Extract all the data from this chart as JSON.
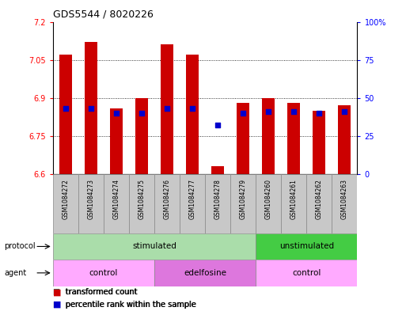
{
  "title": "GDS5544 / 8020226",
  "samples": [
    "GSM1084272",
    "GSM1084273",
    "GSM1084274",
    "GSM1084275",
    "GSM1084276",
    "GSM1084277",
    "GSM1084278",
    "GSM1084279",
    "GSM1084260",
    "GSM1084261",
    "GSM1084262",
    "GSM1084263"
  ],
  "red_values": [
    7.07,
    7.12,
    6.86,
    6.9,
    7.11,
    7.07,
    6.63,
    6.88,
    6.9,
    6.88,
    6.85,
    6.87
  ],
  "blue_values": [
    43,
    43,
    40,
    40,
    43,
    43,
    32,
    40,
    41,
    41,
    40,
    41
  ],
  "ylim_left": [
    6.6,
    7.2
  ],
  "ylim_right": [
    0,
    100
  ],
  "yticks_left": [
    6.6,
    6.75,
    6.9,
    7.05,
    7.2
  ],
  "yticks_right": [
    0,
    25,
    50,
    75,
    100
  ],
  "ytick_labels_left": [
    "6.6",
    "6.75",
    "6.9",
    "7.05",
    "7.2"
  ],
  "ytick_labels_right": [
    "0",
    "25",
    "50",
    "75",
    "100%"
  ],
  "bar_bottom": 6.6,
  "protocol_groups": [
    {
      "label": "stimulated",
      "start": 0,
      "end": 8,
      "color": "#AADDAA"
    },
    {
      "label": "unstimulated",
      "start": 8,
      "end": 12,
      "color": "#44CC44"
    }
  ],
  "agent_groups": [
    {
      "label": "control",
      "start": 0,
      "end": 4,
      "color": "#FFAAFF"
    },
    {
      "label": "edelfosine",
      "start": 4,
      "end": 8,
      "color": "#DD77DD"
    },
    {
      "label": "control",
      "start": 8,
      "end": 12,
      "color": "#FFAAFF"
    }
  ],
  "red_color": "#CC0000",
  "blue_color": "#0000CC",
  "bar_width": 0.5,
  "blue_square_size": 18,
  "label_bg_color": "#C8C8C8",
  "plot_bg": "white",
  "fig_bg": "white"
}
